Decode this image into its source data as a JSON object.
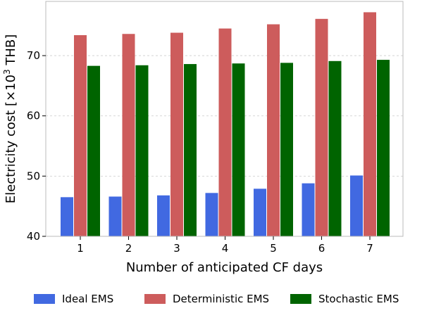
{
  "chart_data": {
    "type": "bar",
    "categories": [
      "1",
      "2",
      "3",
      "4",
      "5",
      "6",
      "7"
    ],
    "series": [
      {
        "name": "Ideal EMS",
        "color": "#4169e1",
        "values": [
          46.5,
          46.6,
          46.8,
          47.2,
          47.9,
          48.8,
          50.1
        ]
      },
      {
        "name": "Deterministic EMS",
        "color": "#cd5c5c",
        "values": [
          73.4,
          73.6,
          73.8,
          74.5,
          75.2,
          76.1,
          77.2
        ]
      },
      {
        "name": "Stochastic EMS",
        "color": "#006400",
        "values": [
          68.3,
          68.4,
          68.6,
          68.7,
          68.8,
          69.1,
          69.3
        ]
      }
    ],
    "xlabel": "Number of anticipated CF days",
    "ylabel_main": "Electricity cost [×10",
    "ylabel_sup": "3",
    "ylabel_tail": " THB]",
    "ylim": [
      40,
      79
    ],
    "yticks": [
      40,
      50,
      60,
      70
    ],
    "grid": "horizontal-dashed",
    "legend_placement": "bottom-center"
  }
}
